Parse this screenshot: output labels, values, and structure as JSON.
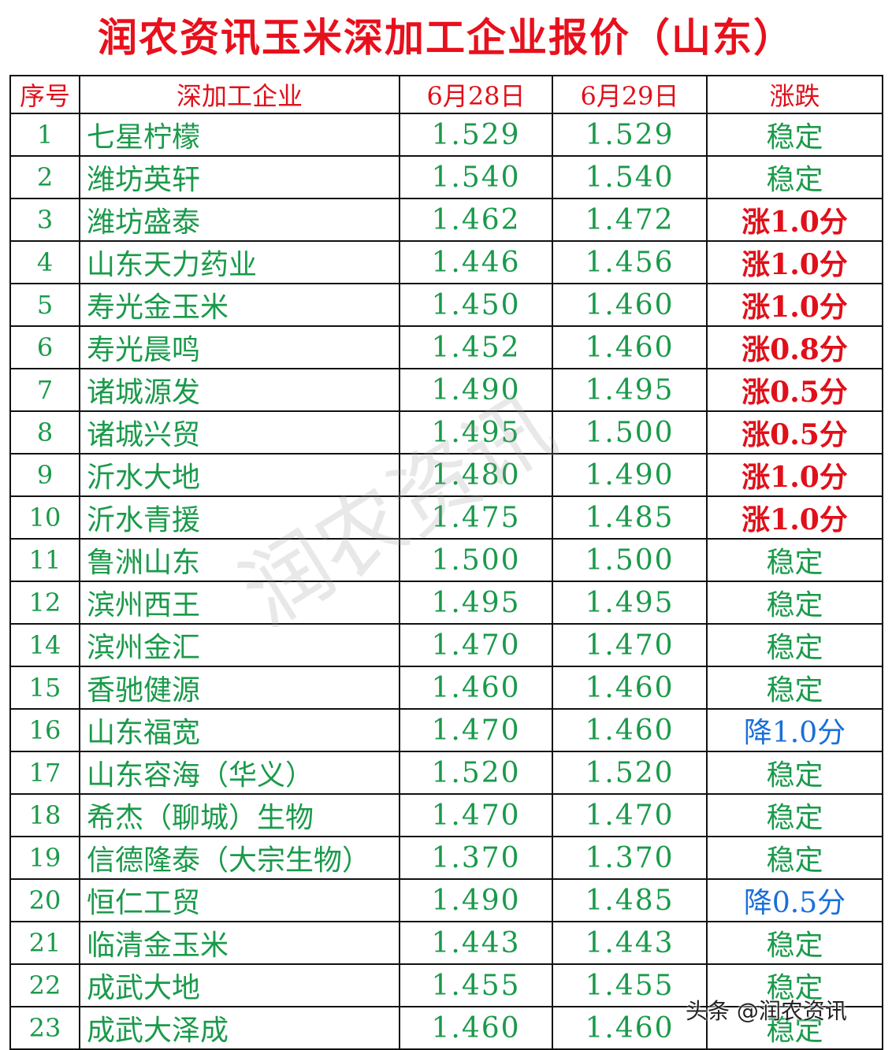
{
  "title": "润农资讯玉米深加工企业报价（山东）",
  "headers": [
    "序号",
    "深加工企业",
    "6月28日",
    "6月29日",
    "涨跌"
  ],
  "colors": {
    "title": "#e8101c",
    "green": "#1a9a4a",
    "up": "#e0101a",
    "down": "#1a6fd8"
  },
  "rows": [
    {
      "no": "1",
      "name": "七星柠檬",
      "d28": "1.529",
      "d29": "1.529",
      "change": "稳定",
      "dir": "flat"
    },
    {
      "no": "2",
      "name": "潍坊英轩",
      "d28": "1.540",
      "d29": "1.540",
      "change": "稳定",
      "dir": "flat"
    },
    {
      "no": "3",
      "name": "潍坊盛泰",
      "d28": "1.462",
      "d29": "1.472",
      "change": "涨1.0分",
      "dir": "up"
    },
    {
      "no": "4",
      "name": "山东天力药业",
      "d28": "1.446",
      "d29": "1.456",
      "change": "涨1.0分",
      "dir": "up"
    },
    {
      "no": "5",
      "name": "寿光金玉米",
      "d28": "1.450",
      "d29": "1.460",
      "change": "涨1.0分",
      "dir": "up"
    },
    {
      "no": "6",
      "name": "寿光晨鸣",
      "d28": "1.452",
      "d29": "1.460",
      "change": "涨0.8分",
      "dir": "up"
    },
    {
      "no": "7",
      "name": "诸城源发",
      "d28": "1.490",
      "d29": "1.495",
      "change": "涨0.5分",
      "dir": "up"
    },
    {
      "no": "8",
      "name": "诸城兴贸",
      "d28": "1.495",
      "d29": "1.500",
      "change": "涨0.5分",
      "dir": "up"
    },
    {
      "no": "9",
      "name": "沂水大地",
      "d28": "1.480",
      "d29": "1.490",
      "change": "涨1.0分",
      "dir": "up"
    },
    {
      "no": "10",
      "name": "沂水青援",
      "d28": "1.475",
      "d29": "1.485",
      "change": "涨1.0分",
      "dir": "up"
    },
    {
      "no": "11",
      "name": "鲁洲山东",
      "d28": "1.500",
      "d29": "1.500",
      "change": "稳定",
      "dir": "flat"
    },
    {
      "no": "12",
      "name": "滨州西王",
      "d28": "1.495",
      "d29": "1.495",
      "change": "稳定",
      "dir": "flat"
    },
    {
      "no": "14",
      "name": "滨州金汇",
      "d28": "1.470",
      "d29": "1.470",
      "change": "稳定",
      "dir": "flat"
    },
    {
      "no": "15",
      "name": "香驰健源",
      "d28": "1.460",
      "d29": "1.460",
      "change": "稳定",
      "dir": "flat"
    },
    {
      "no": "16",
      "name": "山东福宽",
      "d28": "1.470",
      "d29": "1.460",
      "change": "降1.0分",
      "dir": "down"
    },
    {
      "no": "17",
      "name": "山东容海（华义）",
      "d28": "1.520",
      "d29": "1.520",
      "change": "稳定",
      "dir": "flat"
    },
    {
      "no": "18",
      "name": "希杰（聊城）生物",
      "d28": "1.470",
      "d29": "1.470",
      "change": "稳定",
      "dir": "flat"
    },
    {
      "no": "19",
      "name": "信德隆泰（大宗生物）",
      "d28": "1.370",
      "d29": "1.370",
      "change": "稳定",
      "dir": "flat"
    },
    {
      "no": "20",
      "name": "恒仁工贸",
      "d28": "1.490",
      "d29": "1.485",
      "change": "降0.5分",
      "dir": "down"
    },
    {
      "no": "21",
      "name": "临清金玉米",
      "d28": "1.443",
      "d29": "1.443",
      "change": "稳定",
      "dir": "flat"
    },
    {
      "no": "22",
      "name": "成武大地",
      "d28": "1.455",
      "d29": "1.455",
      "change": "稳定",
      "dir": "flat"
    },
    {
      "no": "23",
      "name": "成武大泽成",
      "d28": "1.460",
      "d29": "1.460",
      "change": "稳定",
      "dir": "flat"
    }
  ],
  "watermark": "润农资讯",
  "footer_watermark": "头条 @润农资讯"
}
